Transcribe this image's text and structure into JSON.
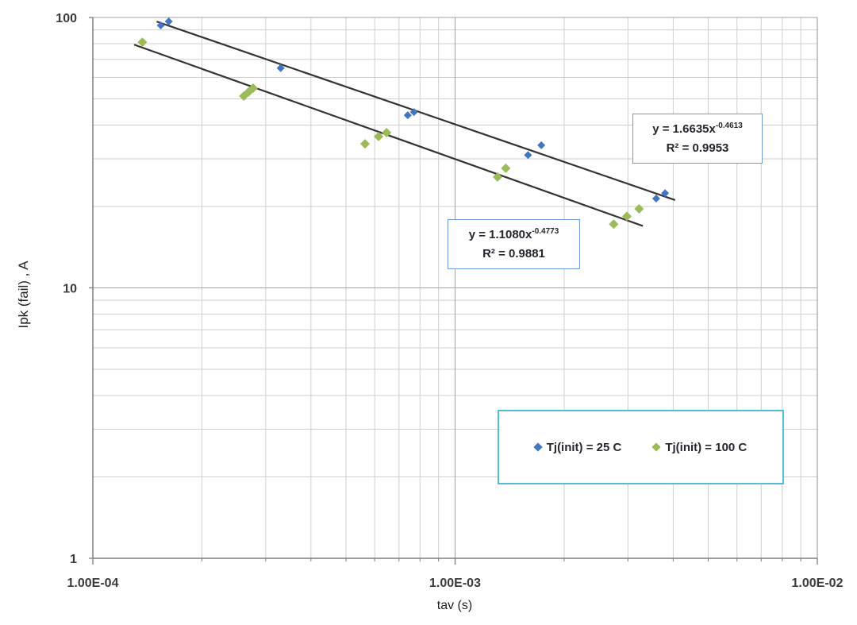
{
  "chart_data": {
    "type": "scatter",
    "title": "",
    "x_axis": {
      "label": "tav (s)",
      "scale": "log",
      "min": 0.0001,
      "max": 0.01,
      "tick_values": [
        0.0001,
        0.001,
        0.01
      ],
      "tick_labels": [
        "1.00E-04",
        "1.00E-03",
        "1.00E-02"
      ],
      "minor_gridlines": true
    },
    "y_axis": {
      "label": "Ipk (fail) ,  A",
      "scale": "log",
      "min": 1,
      "max": 100,
      "tick_values": [
        100,
        10,
        1
      ],
      "tick_labels": [
        "100",
        "10",
        "1"
      ],
      "minor_gridlines": true
    },
    "series": [
      {
        "name": "Tj(init) = 25 C",
        "color": "#4475c1",
        "marker": "diamond",
        "marker_radius": 5,
        "points": [
          [
            0.000154,
            93.5
          ],
          [
            0.000162,
            96.7
          ],
          [
            0.00033,
            65.0
          ],
          [
            0.00074,
            43.5
          ],
          [
            0.00077,
            44.7
          ],
          [
            0.00159,
            31.0
          ],
          [
            0.00173,
            33.7
          ],
          [
            0.00359,
            21.4
          ],
          [
            0.0038,
            22.4
          ]
        ]
      },
      {
        "name": "Tj(init) = 100 C",
        "color": "#9bbb59",
        "marker": "diamond",
        "marker_radius": 6,
        "points": [
          [
            0.000137,
            81.0
          ],
          [
            0.000261,
            51.2
          ],
          [
            0.000269,
            53.0
          ],
          [
            0.000277,
            54.8
          ],
          [
            0.000564,
            34.1
          ],
          [
            0.000615,
            36.3
          ],
          [
            0.000647,
            37.5
          ],
          [
            0.00131,
            25.7
          ],
          [
            0.00138,
            27.7
          ],
          [
            0.00274,
            17.2
          ],
          [
            0.00298,
            18.4
          ],
          [
            0.00322,
            19.6
          ]
        ]
      }
    ],
    "trendlines": [
      {
        "series": "Tj(init) = 25 C",
        "equation_prefix": "y = 1.6635x",
        "equation_exponent": "-0.4613",
        "r_squared_text": "R² = 0.9953",
        "coefficient": 1.6635,
        "exponent": -0.4613,
        "x_start": 0.00015,
        "x_end": 0.00405,
        "color": "#333333"
      },
      {
        "series": "Tj(init) = 100 C",
        "equation_prefix": "y = 1.1080x",
        "equation_exponent": "-0.4773",
        "r_squared_text": "R² = 0.9881",
        "coefficient": 1.108,
        "exponent": -0.4773,
        "x_start": 0.00013,
        "x_end": 0.0033,
        "color": "#333333"
      }
    ],
    "legend": {
      "position": "bottom-right-inside",
      "border_color": "#52bcda",
      "items": [
        "Tj(init) = 25 C",
        "Tj(init) = 100 C"
      ]
    }
  },
  "styles": {
    "grid_minor_color": "#cfcfcf",
    "grid_major_color": "#a3a3a3",
    "axis_line_color": "#7f7f7f",
    "tick_label_color": "#3b3b3b",
    "equation_box_border": "#6c9bd8"
  }
}
